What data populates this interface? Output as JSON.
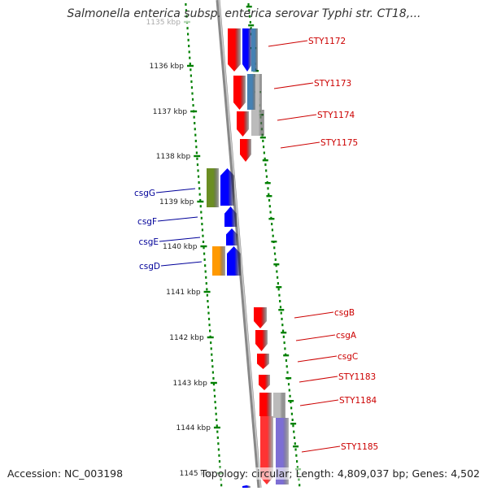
{
  "title": "Salmonella enterica subsp. enterica serovar Typhi str. CT18,...",
  "accession": "Accession: NC_003198",
  "topology": "Topology: circular; Length: 4,809,037 bp; Genes: 4,502",
  "ticks": [
    {
      "label": "1135 kbp",
      "faded": true
    },
    {
      "label": "1136 kbp"
    },
    {
      "label": "1137 kbp"
    },
    {
      "label": "1138 kbp"
    },
    {
      "label": "1139 kbp"
    },
    {
      "label": "1140 kbp"
    },
    {
      "label": "1141 kbp"
    },
    {
      "label": "1142 kbp"
    },
    {
      "label": "1143 kbp"
    },
    {
      "label": "1144 kbp"
    },
    {
      "label": "1145 kbp"
    }
  ],
  "genes_right": [
    "STY1172",
    "STY1173",
    "STY1174",
    "STY1175",
    "csgB",
    "csgA",
    "csgC",
    "STY1183",
    "STY1184",
    "STY1185"
  ],
  "genes_left": [
    "csgG",
    "csgF",
    "csgE",
    "csgD"
  ],
  "colors": {
    "cds": "#ff0000",
    "gene_blue": "#0000ff",
    "gene_green": "#6b8e23",
    "gene_orange": "#ff9900",
    "gene_gray": "#bbbbbb",
    "gene_steel": "#4682b4",
    "gene_purple": "#6655cc",
    "tick_green": "#008000",
    "label_red": "#cc0000",
    "label_blue": "#000099",
    "backbone": "#888888"
  }
}
